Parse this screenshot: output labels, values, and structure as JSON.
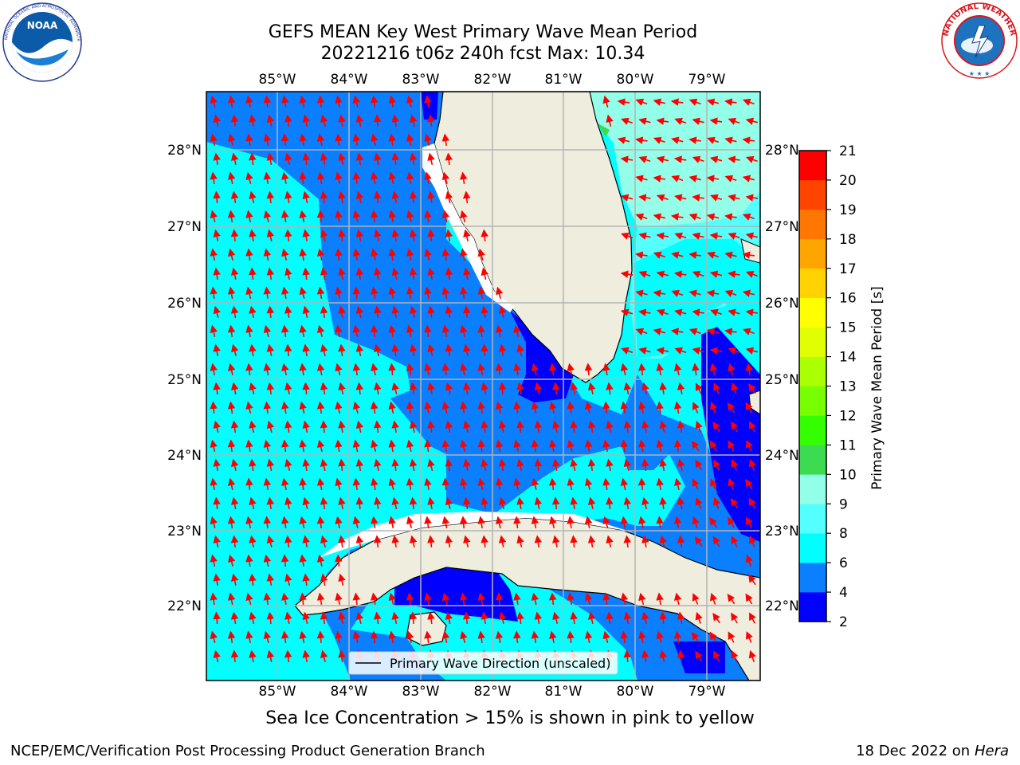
{
  "header": {
    "title_line1": "GEFS MEAN Key West Primary Wave Mean Period",
    "title_line2": "20221216 t06z 240h fcst   Max: 10.34"
  },
  "logos": {
    "left": {
      "name": "noaa-logo",
      "text": "NOAA",
      "ring_text": "NATIONAL OCEANIC AND ATMOSPHERIC ADMINISTRATION · U.S. DEPARTMENT OF COMMERCE"
    },
    "right": {
      "name": "nws-logo",
      "ring_text": "NATIONAL WEATHER SERVICE"
    }
  },
  "map": {
    "lon_labels": [
      "85°W",
      "84°W",
      "83°W",
      "82°W",
      "81°W",
      "80°W",
      "79°W"
    ],
    "lat_labels": [
      "28°N",
      "27°N",
      "26°N",
      "25°N",
      "24°N",
      "23°N",
      "22°N"
    ],
    "legend_label": "Primary Wave Direction (unscaled)",
    "colors": {
      "land": "#efedde",
      "gridline": "#b4b4b4",
      "arrow": "#ff0000"
    }
  },
  "colorbar": {
    "label": "Primary Wave Mean Period [s]",
    "ticks": [
      "2",
      "4",
      "6",
      "8",
      "9",
      "10",
      "11",
      "12",
      "13",
      "14",
      "15",
      "16",
      "17",
      "18",
      "19",
      "20",
      "21"
    ],
    "colors": [
      "#0000ff",
      "#0a7fff",
      "#00ffff",
      "#54ffff",
      "#94ffe8",
      "#3cdb52",
      "#33ff00",
      "#77ff00",
      "#aaff00",
      "#e2ff00",
      "#ffff00",
      "#ffd200",
      "#ffa500",
      "#ff7700",
      "#ff4400",
      "#ff0000"
    ]
  },
  "notes": {
    "sea_ice": "Sea Ice Concentration > 15% is shown in pink to yellow"
  },
  "footer": {
    "left": "NCEP/EMC/Verification Post Processing Product Generation Branch",
    "right_date": "18 Dec 2022 on",
    "right_host": "Hera"
  }
}
